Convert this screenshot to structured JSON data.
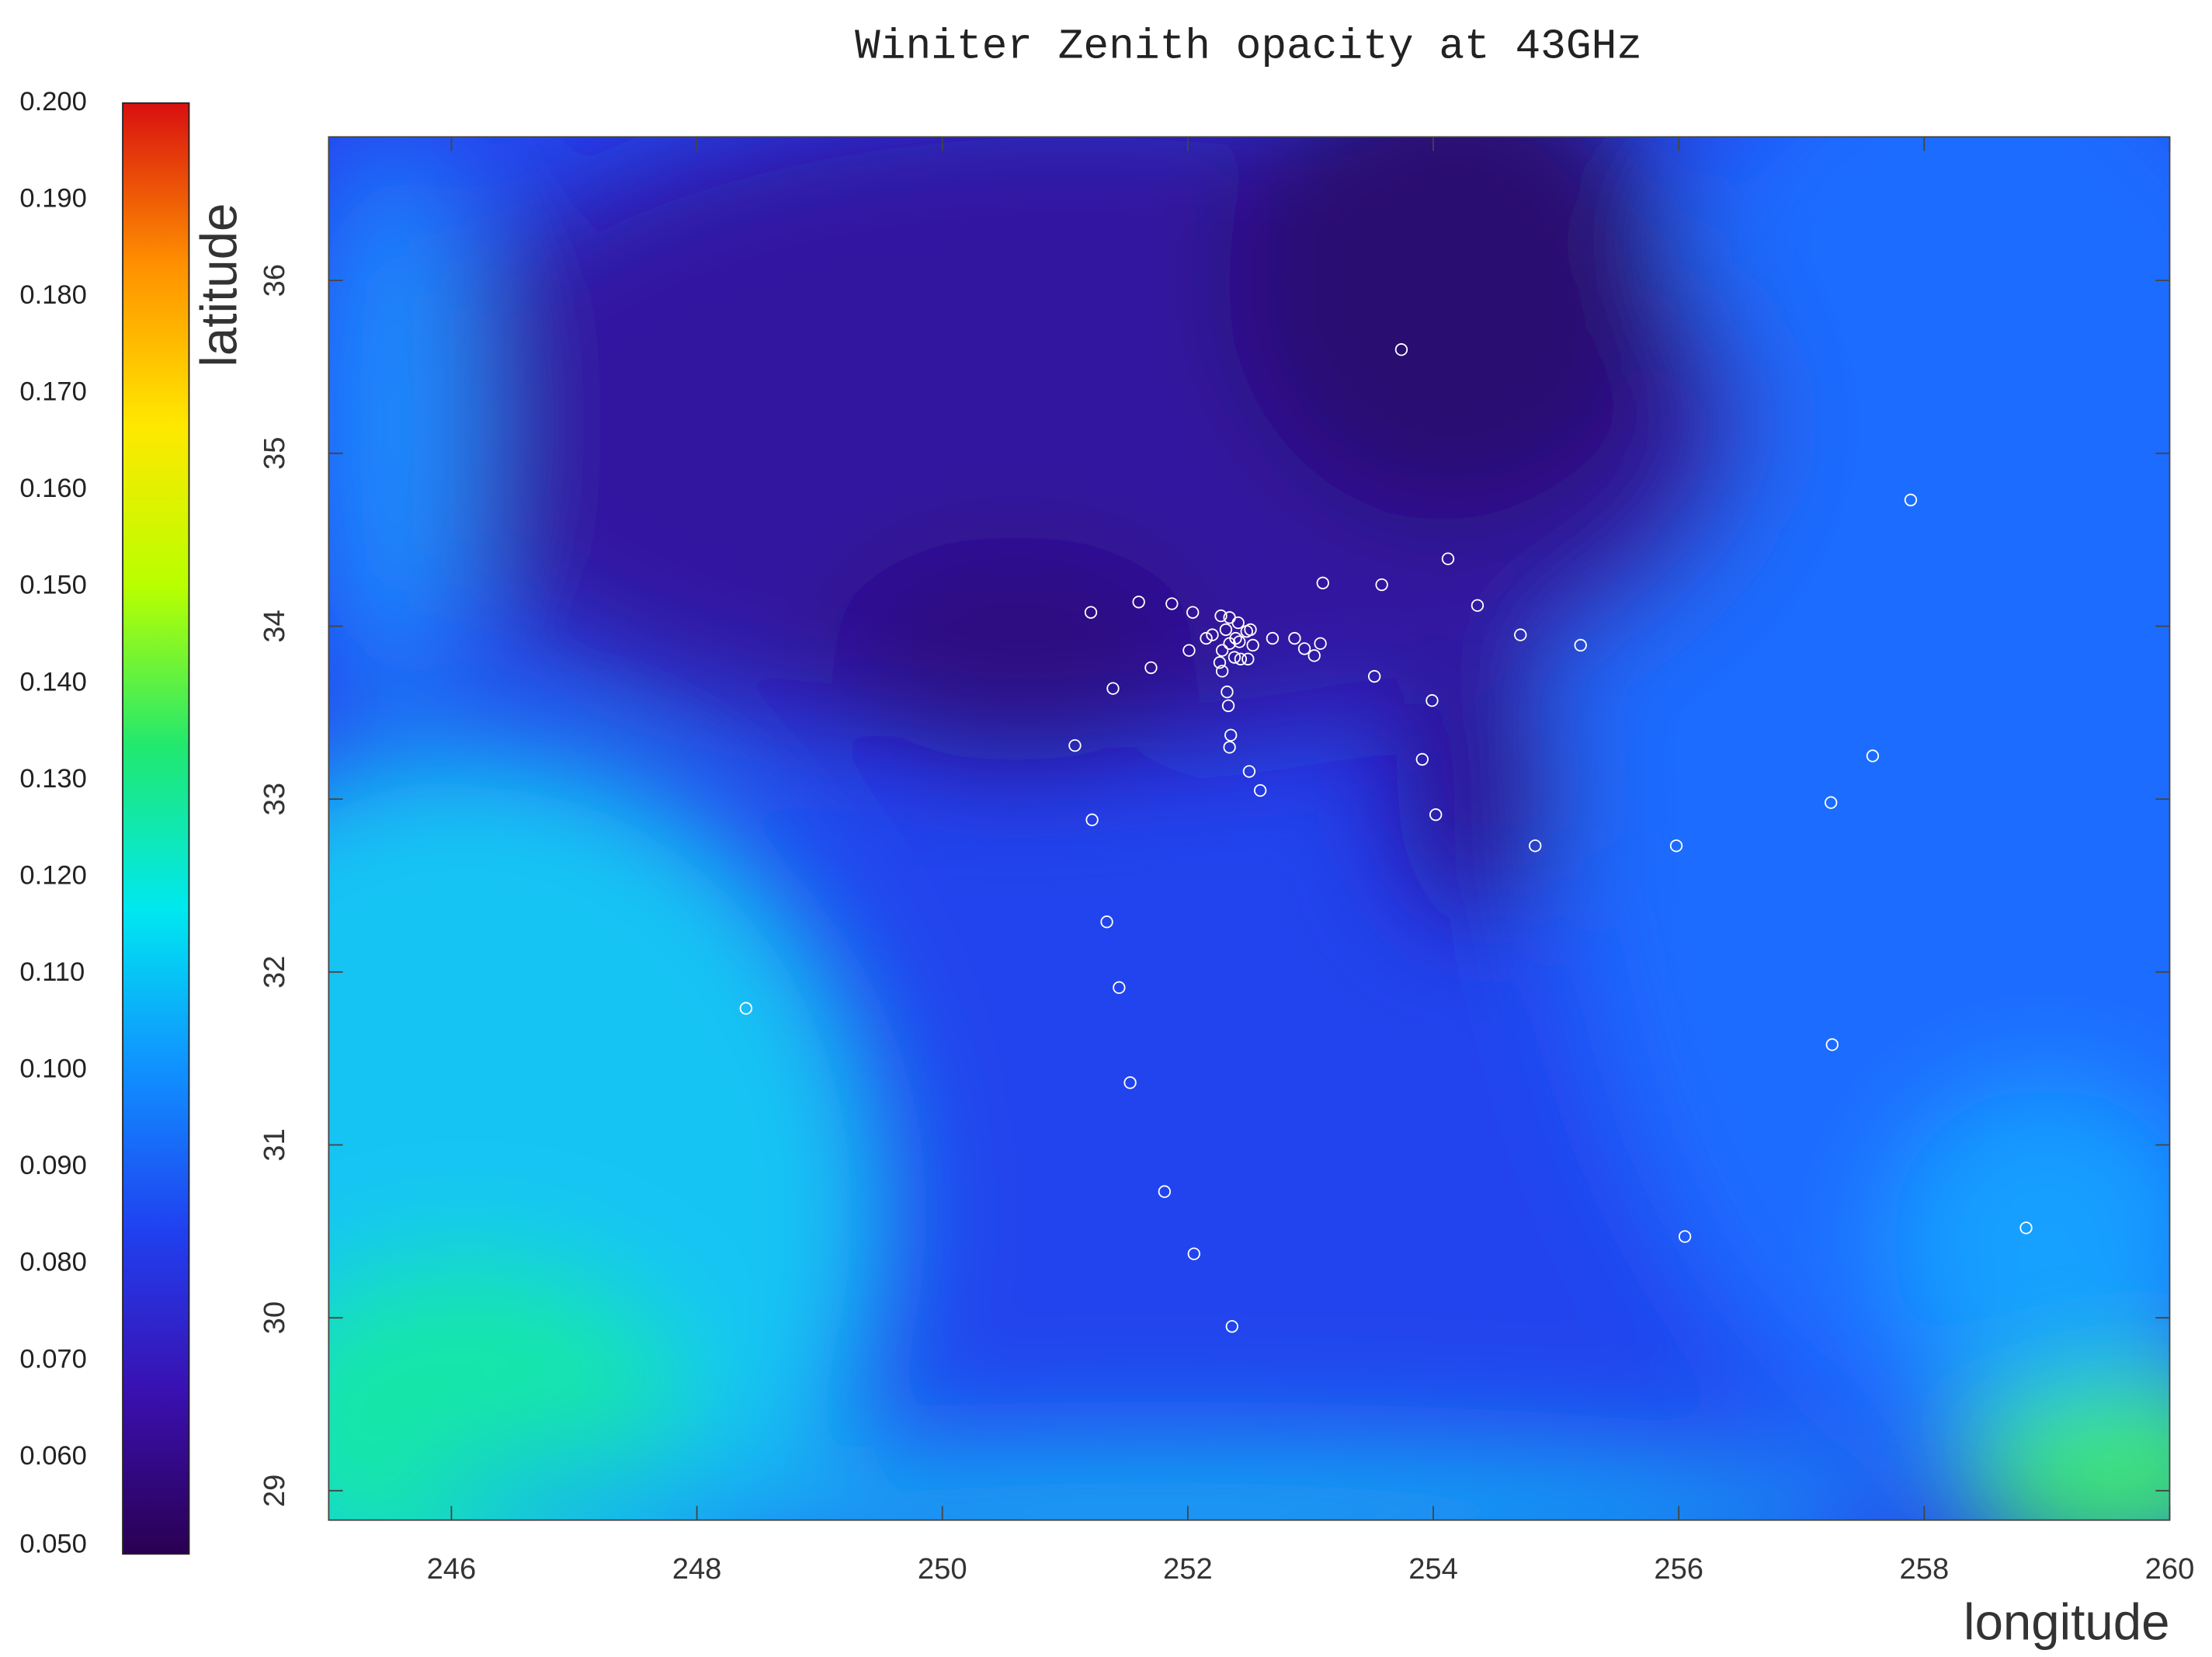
{
  "chart_data": {
    "type": "scatter",
    "title": "Winiter Zenith opacity at 43GHz",
    "x_label": "longitude",
    "y_label": "latitude",
    "xlim": [
      245,
      260
    ],
    "ylim": [
      28.83,
      36.83
    ],
    "xticks": [
      246,
      248,
      250,
      252,
      254,
      256,
      258,
      260
    ],
    "yticks": [
      29,
      30,
      31,
      32,
      33,
      34,
      35,
      36
    ],
    "point_color": "#ffffff",
    "x": [
      253.74,
      257.89,
      254.12,
      253.1,
      253.58,
      251.21,
      251.6,
      251.87,
      252.04,
      254.36,
      254.71,
      255.2,
      252.69,
      252.87,
      252.95,
      253.03,
      253.08,
      252.01,
      251.7,
      251.39,
      253.52,
      253.99,
      252.32,
      252.33,
      252.35,
      252.34,
      251.08,
      252.5,
      252.59,
      253.91,
      257.58,
      257.24,
      251.22,
      254.02,
      254.83,
      255.98,
      251.34,
      251.44,
      248.4,
      257.25,
      251.53,
      251.81,
      256.05,
      258.83,
      252.05,
      252.36,
      252.15,
      252.2,
      252.27,
      252.34,
      252.41,
      252.48,
      252.51,
      252.53,
      252.49,
      252.43,
      252.38,
      252.28,
      252.26,
      252.28,
      252.39,
      252.34,
      252.42,
      252.31
    ],
    "y": [
      35.6,
      34.73,
      34.39,
      34.25,
      34.24,
      34.08,
      34.14,
      34.13,
      34.08,
      34.12,
      33.95,
      33.89,
      33.93,
      33.93,
      33.87,
      33.83,
      33.9,
      33.86,
      33.76,
      33.64,
      33.71,
      33.57,
      33.62,
      33.54,
      33.37,
      33.3,
      33.31,
      33.16,
      33.05,
      33.23,
      33.25,
      32.98,
      32.88,
      32.91,
      32.73,
      32.73,
      32.29,
      31.91,
      31.79,
      31.58,
      31.36,
      30.73,
      30.47,
      30.52,
      30.37,
      29.95,
      33.93,
      33.95,
      34.06,
      34.05,
      34.02,
      33.97,
      33.98,
      33.89,
      33.81,
      33.81,
      33.82,
      33.86,
      33.79,
      33.74,
      33.93,
      33.9,
      33.91,
      33.98
    ],
    "colorbar": {
      "lim": [
        0.05,
        0.2
      ],
      "colors": [
        "#2a0052",
        "#3a10b0",
        "#2040f0",
        "#1090ff",
        "#00e8f0",
        "#20e870",
        "#b8ff00",
        "#ffe800",
        "#ff9000",
        "#d81010"
      ],
      "ticks": [
        {
          "value": 0.05,
          "label": "0.050"
        },
        {
          "value": 0.06,
          "label": "0.060"
        },
        {
          "value": 0.07,
          "label": "0.070"
        },
        {
          "value": 0.08,
          "label": "0.080"
        },
        {
          "value": 0.09,
          "label": "0.090"
        },
        {
          "value": 0.1,
          "label": "0.100"
        },
        {
          "value": 0.11,
          "label": "0.110"
        },
        {
          "value": 0.12,
          "label": "0.120"
        },
        {
          "value": 0.13,
          "label": "0.130"
        },
        {
          "value": 0.14,
          "label": "0.140"
        },
        {
          "value": 0.15,
          "label": "0.150"
        },
        {
          "value": 0.16,
          "label": "0.160"
        },
        {
          "value": 0.17,
          "label": "0.170"
        },
        {
          "value": 0.18,
          "label": "0.180"
        },
        {
          "value": 0.19,
          "label": "0.190"
        },
        {
          "value": 0.2,
          "label": "0.200"
        }
      ]
    }
  }
}
